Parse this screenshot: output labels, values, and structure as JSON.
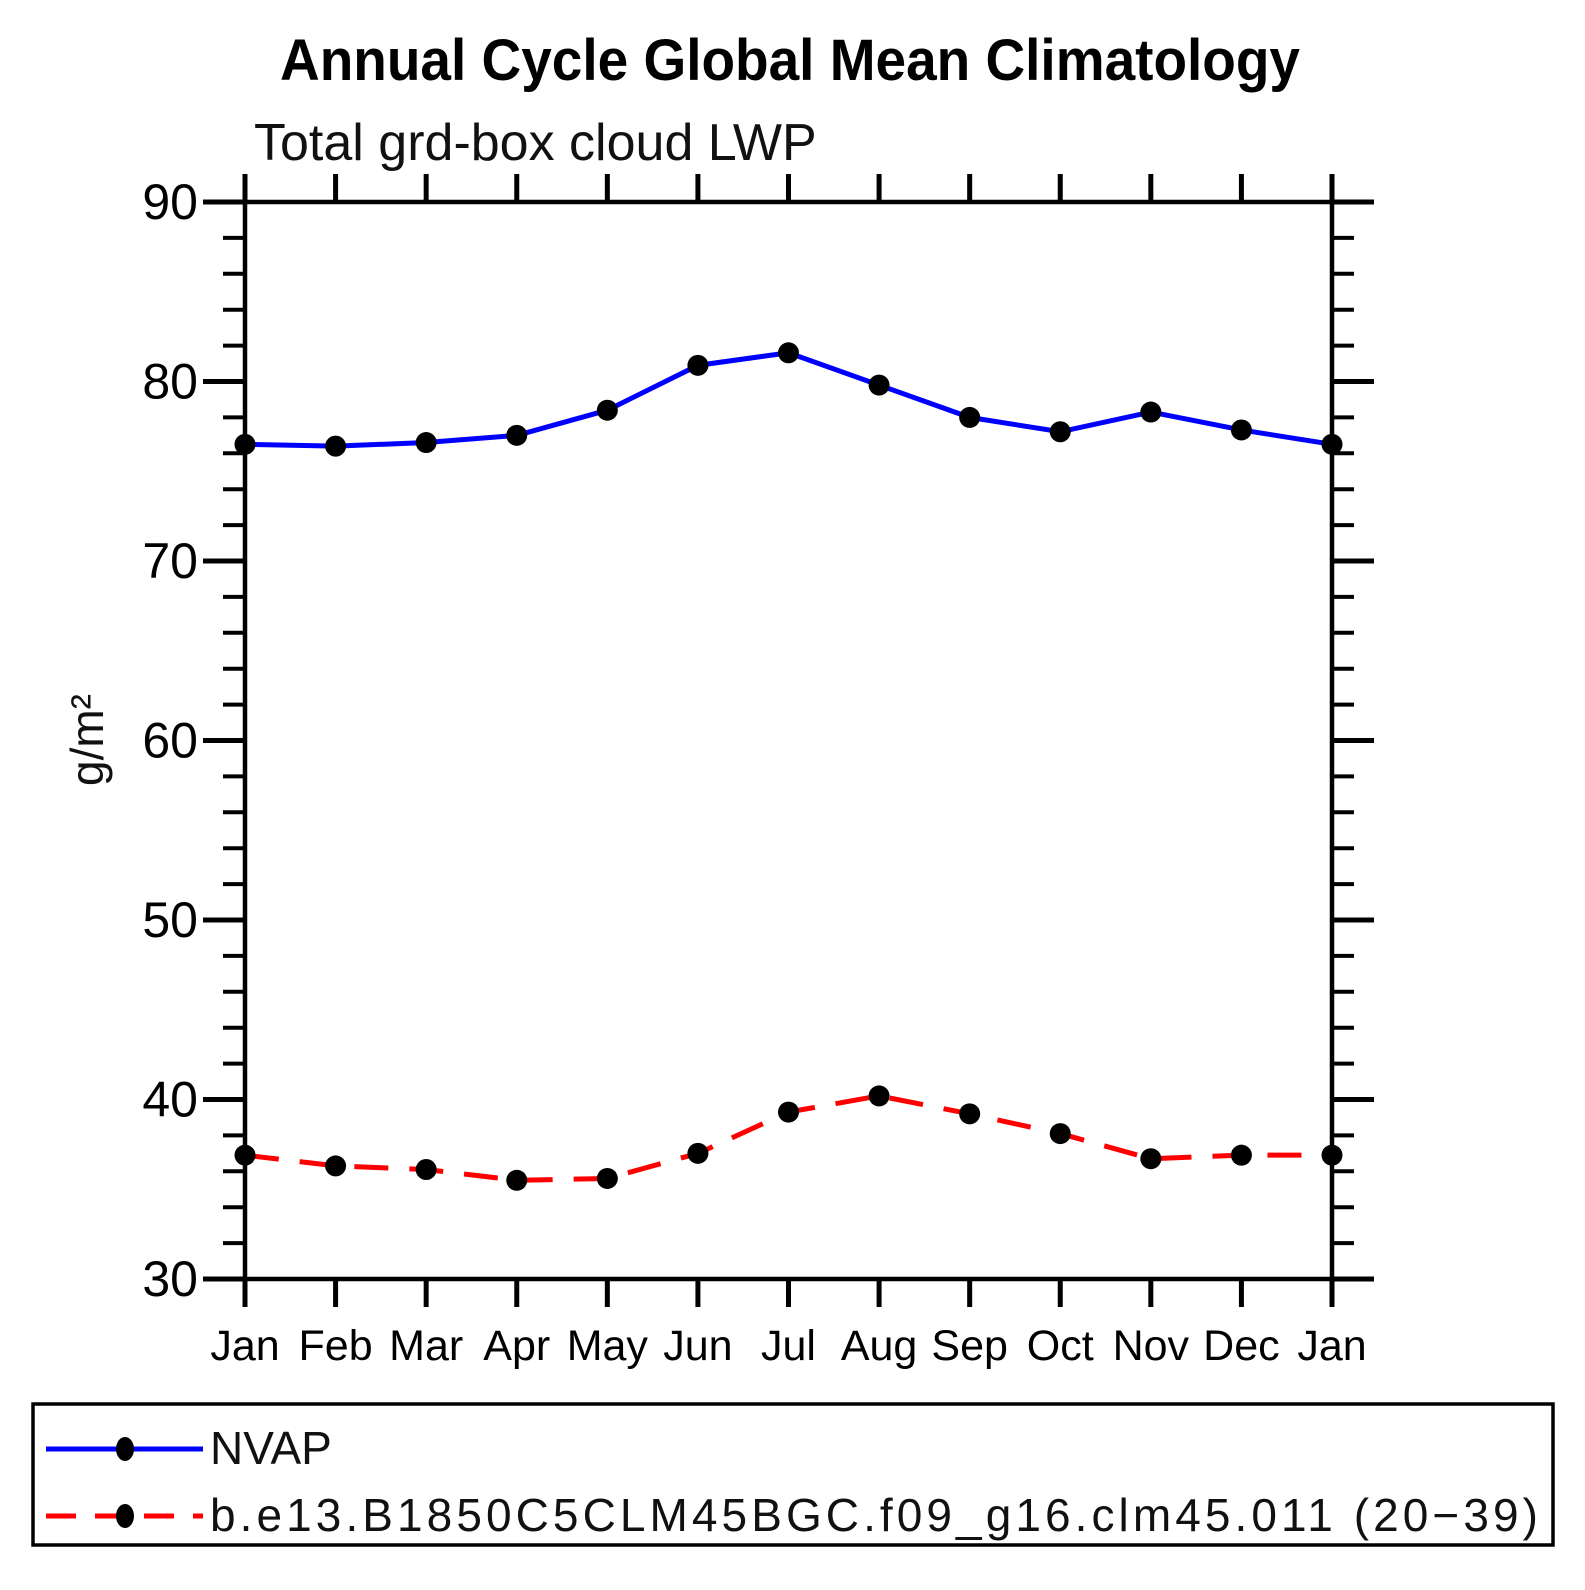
{
  "page": {
    "background": "#ffffff"
  },
  "chart_data": {
    "type": "line",
    "title": "Annual Cycle Global Mean Climatology",
    "subtitle": "Total grd-box cloud LWP",
    "xlabel": "",
    "ylabel": "g/m²",
    "categories": [
      "Jan",
      "Feb",
      "Mar",
      "Apr",
      "May",
      "Jun",
      "Jul",
      "Aug",
      "Sep",
      "Oct",
      "Nov",
      "Dec",
      "Jan"
    ],
    "ylim": [
      30,
      90
    ],
    "ytick_major_step": 10,
    "ytick_minor_step": 2,
    "ytick_major_labels": [
      "30",
      "40",
      "50",
      "60",
      "70",
      "80",
      "90"
    ],
    "grid": false,
    "legend_position": "bottom-box",
    "series": [
      {
        "name": "NVAP",
        "color": "#0000ff",
        "line_style": "solid",
        "marker": "filled-circle",
        "marker_color": "#000000",
        "values": [
          76.5,
          76.4,
          76.6,
          77.0,
          78.4,
          80.9,
          81.6,
          79.8,
          78.0,
          77.2,
          78.3,
          77.3,
          76.5
        ]
      },
      {
        "name": "b.e13.B1850C5CLM45BGC.f09_g16.clm45.011 (20−39)",
        "color": "#ff0000",
        "line_style": "dashed",
        "marker": "filled-circle",
        "marker_color": "#000000",
        "values": [
          36.9,
          36.3,
          36.1,
          35.5,
          35.6,
          37.0,
          39.3,
          40.2,
          39.2,
          38.1,
          36.7,
          36.9,
          36.9
        ]
      }
    ]
  }
}
